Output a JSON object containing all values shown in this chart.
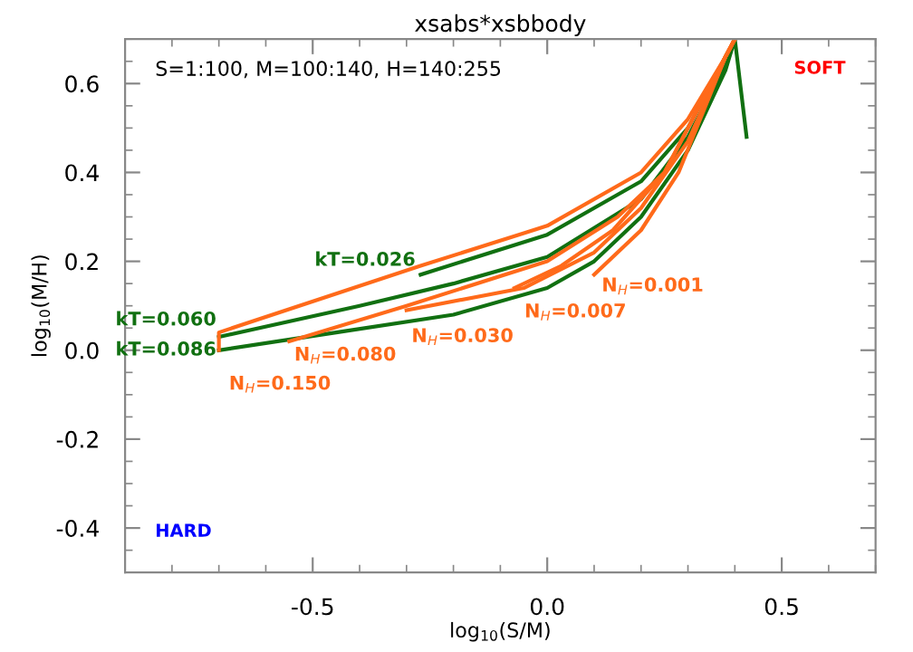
{
  "chart_data": {
    "type": "line",
    "title": "xsabs*xsbbody",
    "xlabel": "log$_{10}$(S/M)",
    "ylabel": "log$_{10}$(M/H)",
    "xlim": [
      -0.9,
      0.7
    ],
    "ylim": [
      -0.5,
      0.7
    ],
    "xticks": [
      -0.5,
      {
        "value": 0,
        "label": "0.0"
      },
      0.5
    ],
    "yticks": [
      -0.4,
      -0.2,
      {
        "value": 0,
        "label": "0.0"
      },
      0.2,
      0.4,
      0.6
    ],
    "grid": false,
    "legend": false,
    "marker": "none",
    "line_style": "solid",
    "annotations": [
      "S=1:100, M=100:140, H=140:255",
      "SOFT",
      "HARD"
    ],
    "series": [
      {
        "name": "kT=0.086",
        "color": "#117011",
        "x": [
          -0.7,
          -0.45,
          -0.2,
          0.0,
          0.1,
          0.2,
          0.3,
          0.38,
          0.4,
          0.425
        ],
        "values": [
          0.0,
          0.04,
          0.08,
          0.14,
          0.2,
          0.3,
          0.45,
          0.63,
          0.7,
          0.48
        ]
      },
      {
        "name": "kT=0.060",
        "color": "#117011",
        "x": [
          -0.7,
          -0.4,
          -0.2,
          0.0,
          0.2,
          0.3,
          0.38,
          0.4
        ],
        "values": [
          0.03,
          0.1,
          0.15,
          0.21,
          0.34,
          0.48,
          0.64,
          0.7
        ]
      },
      {
        "name": "kT=0.026",
        "color": "#117011",
        "x": [
          -0.27,
          0.0,
          0.2,
          0.3,
          0.38,
          0.4
        ],
        "values": [
          0.17,
          0.26,
          0.38,
          0.5,
          0.66,
          0.7
        ]
      },
      {
        "name": "N$_{H}$=0.150",
        "color": "#ff6a1a",
        "x": [
          -0.7,
          -0.7,
          -0.27,
          0.0,
          0.2,
          0.3,
          0.38,
          0.4
        ],
        "values": [
          0.0,
          0.04,
          0.19,
          0.28,
          0.4,
          0.52,
          0.66,
          0.7
        ]
      },
      {
        "name": "N$_{H}$=0.080",
        "color": "#ff6a1a",
        "x": [
          -0.55,
          -0.3,
          0.0,
          0.15,
          0.25,
          0.38,
          0.4
        ],
        "values": [
          0.02,
          0.1,
          0.2,
          0.3,
          0.4,
          0.66,
          0.7
        ]
      },
      {
        "name": "N$_{H}$=0.030",
        "color": "#ff6a1a",
        "x": [
          -0.3,
          -0.05,
          0.1,
          0.2,
          0.3,
          0.38,
          0.4
        ],
        "values": [
          0.09,
          0.14,
          0.22,
          0.32,
          0.47,
          0.66,
          0.7
        ]
      },
      {
        "name": "N$_{H}$=0.007",
        "color": "#ff6a1a",
        "x": [
          -0.07,
          0.03,
          0.14,
          0.25,
          0.38,
          0.4
        ],
        "values": [
          0.14,
          0.19,
          0.27,
          0.4,
          0.66,
          0.7
        ]
      },
      {
        "name": "N$_{H}$=0.001",
        "color": "#ff6a1a",
        "x": [
          0.1,
          0.2,
          0.28,
          0.38,
          0.4
        ],
        "values": [
          0.17,
          0.27,
          0.4,
          0.66,
          0.7
        ]
      }
    ]
  }
}
